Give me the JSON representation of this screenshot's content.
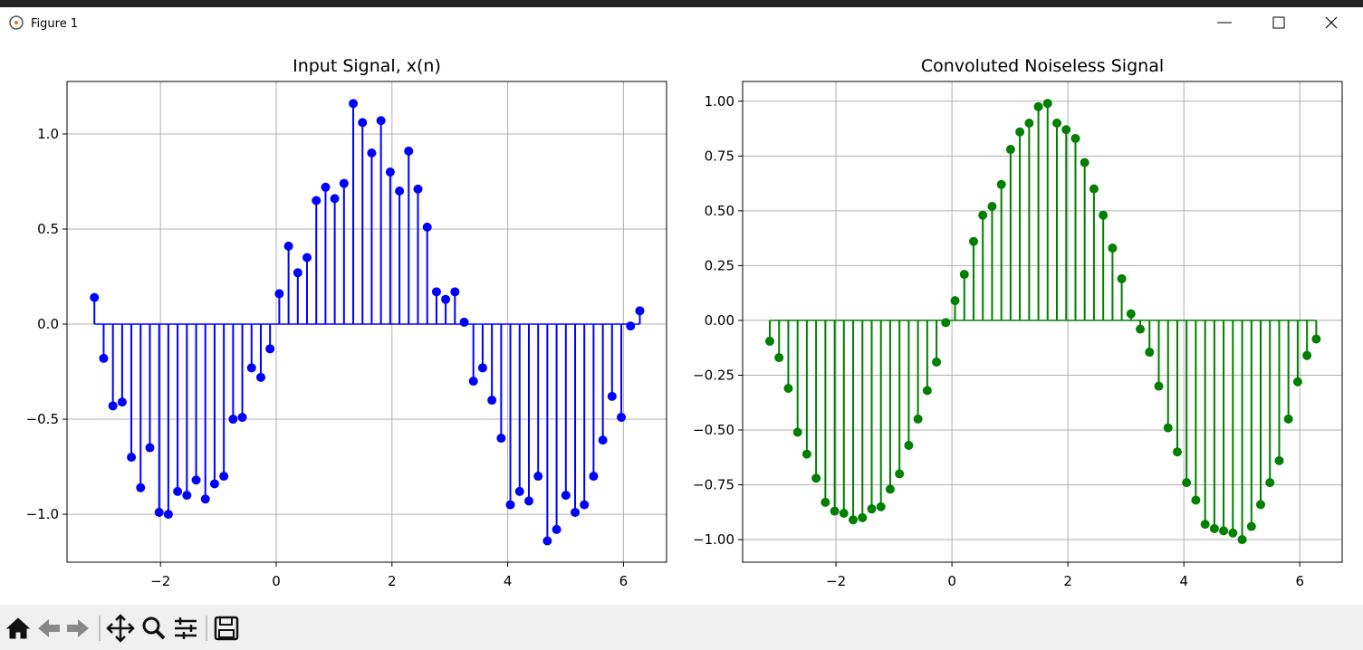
{
  "window": {
    "title": "Figure 1"
  },
  "chart_data": [
    {
      "type": "stem",
      "title": "Input Signal, x(n)",
      "color": "#0000ff",
      "grid": true,
      "xlim": [
        -3.615,
        6.745
      ],
      "ylim": [
        -1.252,
        1.276
      ],
      "xticks": [
        {
          "value": -2,
          "label": "−2"
        },
        0,
        2,
        4,
        6
      ],
      "yticks": [
        {
          "value": -1.0,
          "label": "−1.0"
        },
        {
          "value": -0.5,
          "label": "−0.5"
        },
        {
          "value": 0.0,
          "label": "0.0"
        },
        {
          "value": 0.5,
          "label": "0.5"
        },
        {
          "value": 1.0,
          "label": "1.0"
        }
      ],
      "x": [
        -3.142,
        -2.982,
        -2.822,
        -2.662,
        -2.503,
        -2.343,
        -2.183,
        -2.023,
        -1.864,
        -1.704,
        -1.544,
        -1.384,
        -1.225,
        -1.065,
        -0.905,
        -0.745,
        -0.586,
        -0.426,
        -0.266,
        -0.107,
        0.053,
        0.213,
        0.373,
        0.532,
        0.692,
        0.852,
        1.011,
        1.171,
        1.331,
        1.491,
        1.65,
        1.81,
        1.97,
        2.13,
        2.289,
        2.449,
        2.609,
        2.769,
        2.928,
        3.088,
        3.248,
        3.407,
        3.567,
        3.727,
        3.887,
        4.046,
        4.206,
        4.366,
        4.526,
        4.685,
        4.845,
        5.005,
        5.165,
        5.324,
        5.484,
        5.644,
        5.803,
        5.963,
        6.123,
        6.283
      ],
      "values": [
        0.14,
        -0.18,
        -0.43,
        -0.41,
        -0.7,
        -0.86,
        -0.65,
        -0.99,
        -1.0,
        -0.88,
        -0.9,
        -0.82,
        -0.92,
        -0.84,
        -0.8,
        -0.5,
        -0.49,
        -0.23,
        -0.28,
        -0.13,
        0.16,
        0.41,
        0.27,
        0.35,
        0.65,
        0.72,
        0.66,
        0.74,
        1.16,
        1.06,
        0.9,
        1.07,
        0.8,
        0.7,
        0.91,
        0.71,
        0.51,
        0.17,
        0.13,
        0.17,
        0.01,
        -0.3,
        -0.23,
        -0.4,
        -0.6,
        -0.95,
        -0.88,
        -0.93,
        -0.8,
        -1.14,
        -1.08,
        -0.9,
        -0.99,
        -0.95,
        -0.8,
        -0.61,
        -0.38,
        -0.49,
        -0.01,
        0.07
      ]
    },
    {
      "type": "stem",
      "title": "Convoluted Noiseless Signal",
      "color": "#008000",
      "grid": true,
      "xlim": [
        -3.61,
        6.73
      ],
      "ylim": [
        -1.103,
        1.09
      ],
      "xticks": [
        {
          "value": -2,
          "label": "−2"
        },
        0,
        2,
        4,
        6
      ],
      "yticks": [
        {
          "value": -1.0,
          "label": "−1.00"
        },
        {
          "value": -0.75,
          "label": "−0.75"
        },
        {
          "value": -0.5,
          "label": "−0.50"
        },
        {
          "value": -0.25,
          "label": "−0.25"
        },
        {
          "value": 0.0,
          "label": "0.00"
        },
        {
          "value": 0.25,
          "label": "0.25"
        },
        {
          "value": 0.5,
          "label": "0.50"
        },
        {
          "value": 0.75,
          "label": "0.75"
        },
        {
          "value": 1.0,
          "label": "1.00"
        }
      ],
      "x": [
        -3.142,
        -2.982,
        -2.822,
        -2.662,
        -2.503,
        -2.343,
        -2.183,
        -2.023,
        -1.864,
        -1.704,
        -1.544,
        -1.384,
        -1.225,
        -1.065,
        -0.905,
        -0.745,
        -0.586,
        -0.426,
        -0.266,
        -0.107,
        0.053,
        0.213,
        0.373,
        0.532,
        0.692,
        0.852,
        1.011,
        1.171,
        1.331,
        1.491,
        1.65,
        1.81,
        1.97,
        2.13,
        2.289,
        2.449,
        2.609,
        2.769,
        2.928,
        3.088,
        3.248,
        3.407,
        3.567,
        3.727,
        3.887,
        4.046,
        4.206,
        4.366,
        4.526,
        4.685,
        4.845,
        5.005,
        5.165,
        5.324,
        5.484,
        5.644,
        5.803,
        5.963,
        6.123,
        6.283
      ],
      "values": [
        -0.095,
        -0.17,
        -0.31,
        -0.51,
        -0.61,
        -0.72,
        -0.83,
        -0.87,
        -0.88,
        -0.91,
        -0.9,
        -0.86,
        -0.85,
        -0.77,
        -0.7,
        -0.57,
        -0.45,
        -0.32,
        -0.19,
        -0.01,
        0.09,
        0.21,
        0.36,
        0.48,
        0.52,
        0.62,
        0.78,
        0.86,
        0.9,
        0.975,
        0.99,
        0.9,
        0.87,
        0.83,
        0.72,
        0.6,
        0.48,
        0.33,
        0.19,
        0.03,
        -0.04,
        -0.145,
        -0.3,
        -0.49,
        -0.6,
        -0.74,
        -0.82,
        -0.93,
        -0.95,
        -0.96,
        -0.97,
        -1.0,
        -0.94,
        -0.84,
        -0.74,
        -0.64,
        -0.45,
        -0.28,
        -0.16,
        -0.085
      ]
    }
  ]
}
